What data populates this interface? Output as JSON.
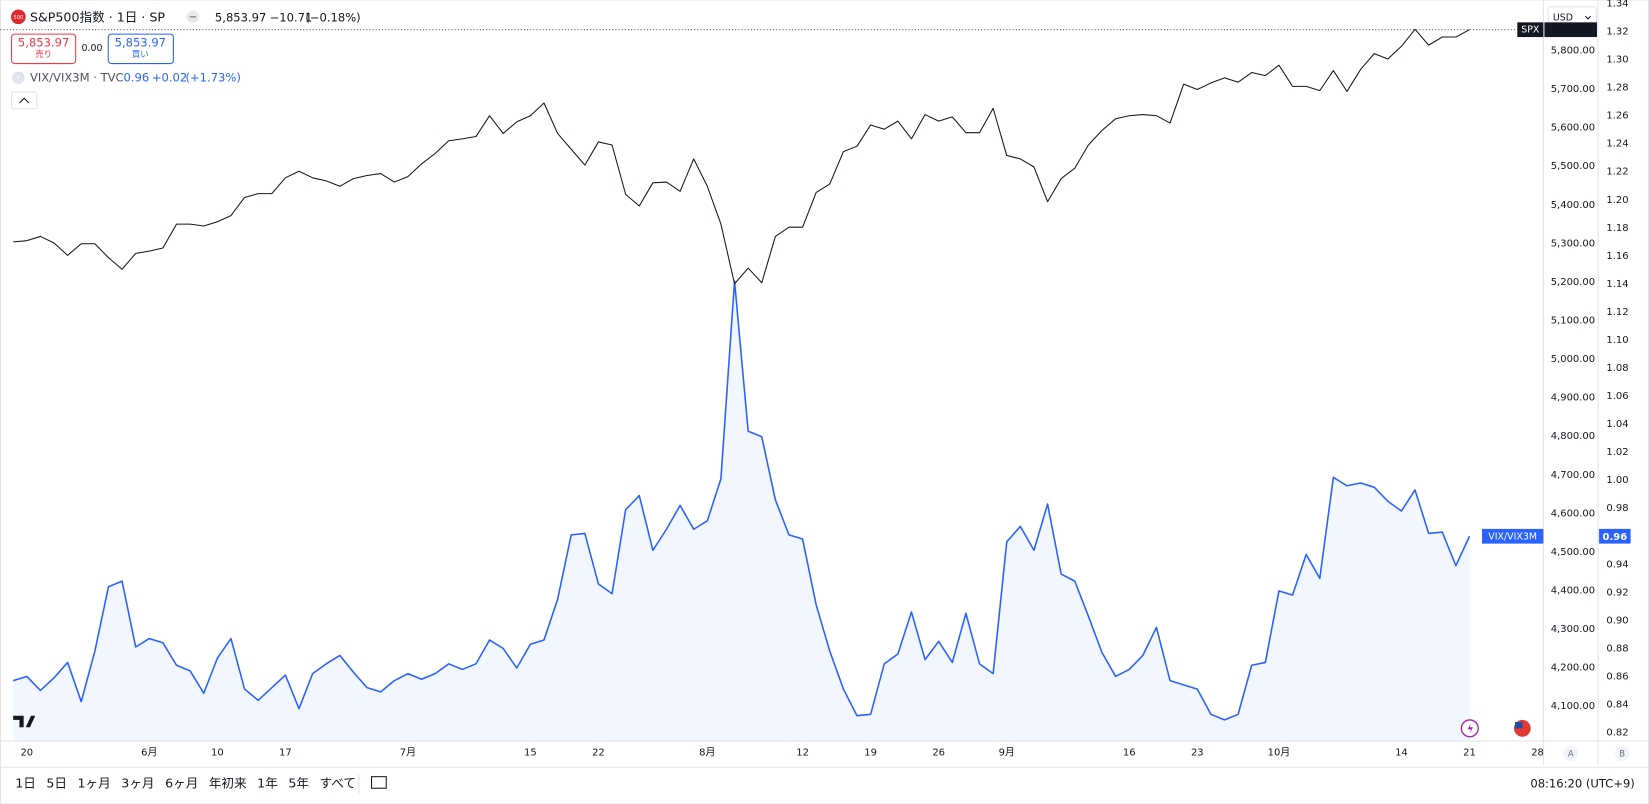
{
  "header": {
    "logo": "500",
    "title": "S&P500指数 · 1日 · SP",
    "price": "5,853.97",
    "change": "−10.71",
    "change_pct": "(−0.18%)",
    "sell_price": "5,853.97",
    "sell_label": "売り",
    "spread": "0.00",
    "buy_price": "5,853.97",
    "buy_label": "買い",
    "study_icon": "Y",
    "study_title": "VIX/VIX3M · TVC",
    "study_change": "+0.02",
    "study_change_pct": "(+1.73%)",
    "currency": "USD"
  },
  "chart_data": {
    "type": "line",
    "categories": [
      null,
      "20",
      null,
      null,
      null,
      null,
      null,
      null,
      null,
      null,
      "6月",
      null,
      null,
      null,
      null,
      "10",
      null,
      null,
      null,
      null,
      "17",
      null,
      null,
      null,
      null,
      null,
      null,
      null,
      null,
      "7月",
      null,
      null,
      null,
      null,
      null,
      null,
      null,
      null,
      "15",
      null,
      null,
      null,
      null,
      "22",
      null,
      null,
      null,
      null,
      null,
      null,
      null,
      "8月",
      null,
      null,
      null,
      null,
      null,
      null,
      "12",
      null,
      null,
      null,
      null,
      "19",
      null,
      null,
      null,
      null,
      "26",
      null,
      null,
      null,
      null,
      "9月",
      null,
      null,
      null,
      null,
      null,
      null,
      null,
      null,
      "16",
      null,
      null,
      null,
      null,
      "23",
      null,
      null,
      null,
      null,
      null,
      "10月",
      null,
      null,
      null,
      null,
      null,
      null,
      null,
      null,
      "14",
      null,
      null,
      null,
      null,
      "21",
      null,
      null,
      null,
      null,
      "28"
    ],
    "series": [
      {
        "name": "SPX",
        "color": "#131722",
        "axis": "y",
        "values": [
          5304,
          5307,
          5318,
          5301,
          5269,
          5299,
          5299,
          5263,
          5233,
          5274,
          5280,
          5288,
          5350,
          5350,
          5345,
          5356,
          5372,
          5419,
          5429,
          5429,
          5470,
          5487,
          5470,
          5462,
          5448,
          5468,
          5476,
          5481,
          5459,
          5473,
          5506,
          5533,
          5566,
          5571,
          5577,
          5631,
          5585,
          5615,
          5631,
          5664,
          5585,
          5544,
          5503,
          5563,
          5555,
          5427,
          5397,
          5457,
          5459,
          5435,
          5519,
          5448,
          5350,
          5195,
          5236,
          5198,
          5318,
          5342,
          5342,
          5432,
          5454,
          5538,
          5552,
          5607,
          5596,
          5617,
          5571,
          5634,
          5617,
          5628,
          5587,
          5587,
          5650,
          5528,
          5519,
          5498,
          5408,
          5468,
          5495,
          5555,
          5593,
          5623,
          5631,
          5634,
          5631,
          5612,
          5713,
          5699,
          5716,
          5729,
          5718,
          5743,
          5735,
          5762,
          5707,
          5707,
          5696,
          5748,
          5694,
          5751,
          5792,
          5778,
          5811,
          5855,
          5814,
          5835,
          5835,
          5853.97,
          null,
          null,
          null,
          null,
          null
        ]
      },
      {
        "name": "VIX/VIX3M",
        "color": "#2962ff",
        "axis": "y2",
        "area": true,
        "values": [
          0.857,
          0.86,
          0.85,
          0.859,
          0.87,
          0.842,
          0.878,
          0.924,
          0.928,
          0.881,
          0.887,
          0.884,
          0.868,
          0.864,
          0.848,
          0.873,
          0.887,
          0.851,
          0.843,
          0.852,
          0.861,
          0.837,
          0.862,
          0.869,
          0.875,
          0.863,
          0.852,
          0.849,
          0.857,
          0.862,
          0.858,
          0.862,
          0.869,
          0.865,
          0.869,
          0.886,
          0.88,
          0.866,
          0.883,
          0.886,
          0.915,
          0.961,
          0.962,
          0.926,
          0.919,
          0.979,
          0.989,
          0.95,
          0.965,
          0.982,
          0.965,
          0.971,
          1.001,
          1.142,
          1.035,
          1.031,
          0.986,
          0.961,
          0.958,
          0.911,
          0.878,
          0.851,
          0.832,
          0.833,
          0.869,
          0.876,
          0.906,
          0.872,
          0.885,
          0.87,
          0.905,
          0.869,
          0.862,
          0.956,
          0.967,
          0.95,
          0.983,
          0.933,
          0.928,
          0.903,
          0.877,
          0.86,
          0.865,
          0.875,
          0.895,
          0.857,
          0.854,
          0.851,
          0.833,
          0.829,
          0.833,
          0.868,
          0.87,
          0.921,
          0.918,
          0.947,
          0.93,
          1.002,
          0.996,
          0.998,
          0.995,
          0.985,
          0.978,
          0.993,
          0.962,
          0.963,
          0.939,
          0.96,
          null,
          null,
          null,
          null,
          null
        ]
      }
    ],
    "ylim": [
      4010,
      5931
    ],
    "yticks": [
      {
        "value": 4100,
        "label": "4,100.00"
      },
      {
        "value": 4200,
        "label": "4,200.00"
      },
      {
        "value": 4300,
        "label": "4,300.00"
      },
      {
        "value": 4400,
        "label": "4,400.00"
      },
      {
        "value": 4500,
        "label": "4,500.00"
      },
      {
        "value": 4600,
        "label": "4,600.00"
      },
      {
        "value": 4700,
        "label": "4,700.00"
      },
      {
        "value": 4800,
        "label": "4,800.00"
      },
      {
        "value": 4900,
        "label": "4,900.00"
      },
      {
        "value": 5000,
        "label": "5,000.00"
      },
      {
        "value": 5100,
        "label": "5,100.00"
      },
      {
        "value": 5200,
        "label": "5,200.00"
      },
      {
        "value": 5300,
        "label": "5,300.00"
      },
      {
        "value": 5400,
        "label": "5,400.00"
      },
      {
        "value": 5500,
        "label": "5,500.00"
      },
      {
        "value": 5600,
        "label": "5,600.00"
      },
      {
        "value": 5700,
        "label": "5,700.00"
      },
      {
        "value": 5800,
        "label": "5,800.00"
      }
    ],
    "y2lim": [
      0.814,
      1.3425
    ],
    "y2ticks": [
      0.82,
      0.84,
      0.86,
      0.88,
      {
        "value": 0.9,
        "label": "0.90"
      },
      0.92,
      0.94,
      0.96,
      0.98,
      {
        "value": 1,
        "label": "1.00"
      },
      1.02,
      1.04,
      1.06,
      1.08,
      {
        "value": 1.1,
        "label": "1.10"
      },
      1.12,
      1.14,
      1.16,
      1.18,
      {
        "value": 1.2,
        "label": "1.20"
      },
      1.22,
      1.24,
      1.26,
      1.28,
      {
        "value": 1.3,
        "label": "1.30"
      },
      1.32,
      1.34
    ],
    "grid": false
  },
  "footer": {
    "ranges": [
      "1日",
      "5日",
      "1ヶ月",
      "3ヶ月",
      "6ヶ月",
      "年初来",
      "1年",
      "5年",
      "すべて"
    ],
    "clock": "08:16:20 (UTC+9)",
    "scale_a": "A",
    "scale_b": "B"
  }
}
